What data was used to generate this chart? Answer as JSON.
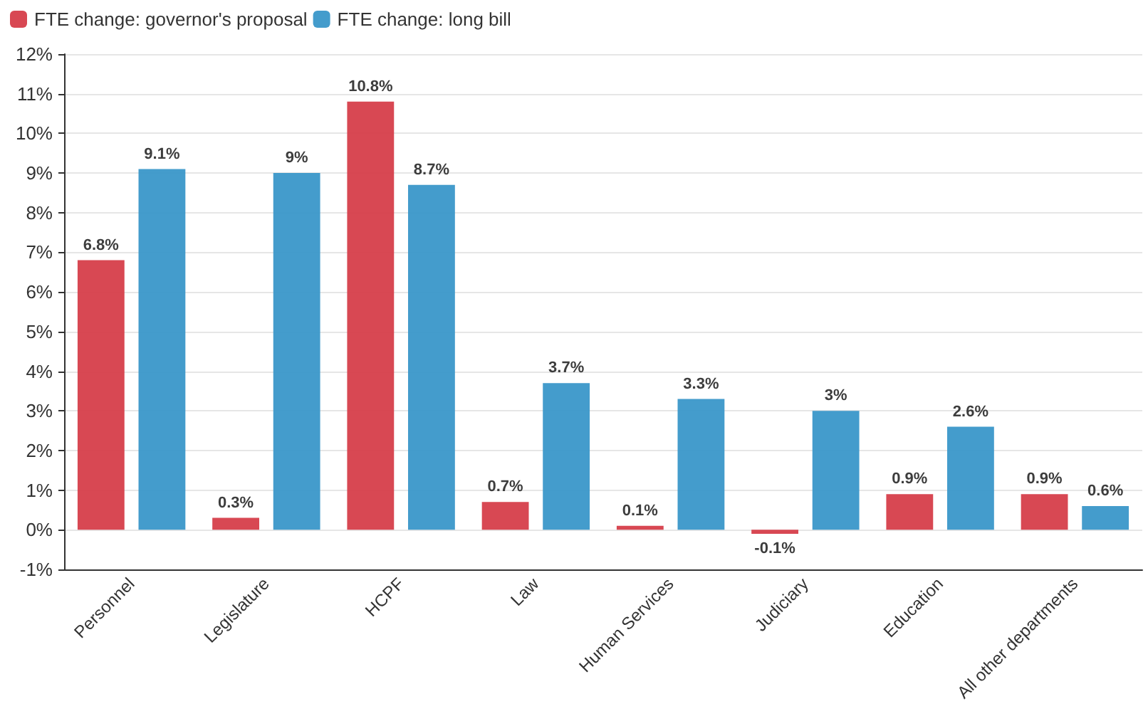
{
  "chart_data": {
    "type": "bar",
    "categories": [
      "Personnel",
      "Legislature",
      "HCPF",
      "Law",
      "Human Services",
      "Judiciary",
      "Education",
      "All other departments"
    ],
    "series": [
      {
        "name": "FTE change: governor's proposal",
        "color": "#d63e4a",
        "values": [
          6.8,
          0.3,
          10.8,
          0.7,
          0.1,
          -0.1,
          0.9,
          0.9
        ],
        "value_labels": [
          "6.8%",
          "0.3%",
          "10.8%",
          "0.7%",
          "0.1%",
          "-0.1%",
          "0.9%",
          "0.9%"
        ]
      },
      {
        "name": "FTE change: long bill",
        "color": "#3a97c9",
        "values": [
          9.1,
          9,
          8.7,
          3.7,
          3.3,
          3,
          2.6,
          0.6
        ],
        "value_labels": [
          "9.1%",
          "9%",
          "8.7%",
          "3.7%",
          "3.3%",
          "3%",
          "2.6%",
          "0.6%"
        ]
      }
    ],
    "ylim": [
      -1,
      12
    ],
    "yticks": [
      {
        "value": -1,
        "label": "-1%"
      },
      {
        "value": 0,
        "label": "0%"
      },
      {
        "value": 1,
        "label": "1%"
      },
      {
        "value": 2,
        "label": "2%"
      },
      {
        "value": 3,
        "label": "3%"
      },
      {
        "value": 4,
        "label": "4%"
      },
      {
        "value": 5,
        "label": "5%"
      },
      {
        "value": 6,
        "label": "6%"
      },
      {
        "value": 7,
        "label": "7%"
      },
      {
        "value": 8,
        "label": "8%"
      },
      {
        "value": 9,
        "label": "9%"
      },
      {
        "value": 10,
        "label": "10%"
      },
      {
        "value": 11,
        "label": "11%"
      },
      {
        "value": 12,
        "label": "12%"
      }
    ],
    "grid": "y",
    "legend": "top left"
  }
}
